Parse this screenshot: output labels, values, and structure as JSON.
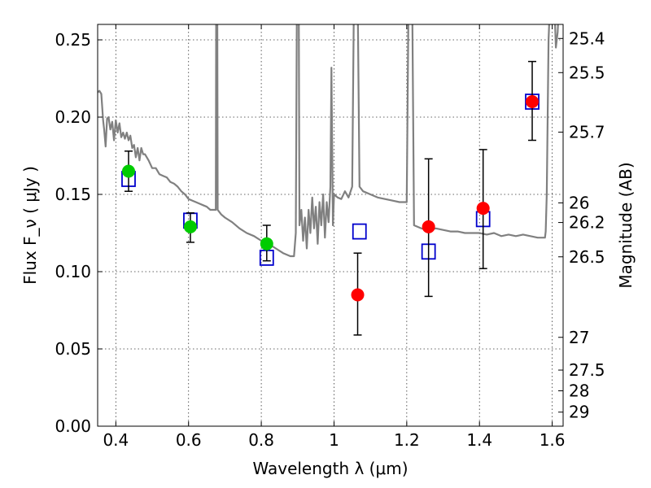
{
  "chart_data": {
    "type": "scatter",
    "title": "",
    "xlabel": "Wavelength  λ (μm)",
    "ylabel": "Flux  F_ν  ( μJy )",
    "ylabel_right": "Magnitude (AB)",
    "xlim": [
      0.35,
      1.63
    ],
    "ylim": [
      0,
      0.26
    ],
    "grid": true,
    "xticks": [
      0.4,
      0.6,
      0.8,
      1.0,
      1.2,
      1.4,
      1.6
    ],
    "xtick_labels": [
      "0.4",
      "0.6",
      "0.8",
      "1",
      "1.2",
      "1.4",
      "1.6"
    ],
    "yticks": [
      0,
      0.05,
      0.1,
      0.15,
      0.2,
      0.25
    ],
    "ytick_labels": [
      "0.00",
      "0.05",
      "0.10",
      "0.15",
      "0.20",
      "0.25"
    ],
    "right_ticks": [
      {
        "flux": 0.2509,
        "label": "25.4"
      },
      {
        "flux": 0.2288,
        "label": "25.5"
      },
      {
        "flux": 0.1903,
        "label": "25.7"
      },
      {
        "flux": 0.1445,
        "label": "26"
      },
      {
        "flux": 0.1318,
        "label": "26.2"
      },
      {
        "flux": 0.1096,
        "label": "26.5"
      },
      {
        "flux": 0.0575,
        "label": "27"
      },
      {
        "flux": 0.0363,
        "label": "27.5"
      },
      {
        "flux": 0.0229,
        "label": "28"
      },
      {
        "flux": 0.0091,
        "label": "29"
      }
    ],
    "colors": {
      "model": "#808080",
      "detected": "#00cc00",
      "upper": "#ff0000",
      "model_flux": "#0000cc",
      "errorbar": "#000000"
    },
    "series": [
      {
        "marker": "line",
        "points": [
          [
            0.35,
            0.216
          ],
          [
            0.355,
            0.217
          ],
          [
            0.36,
            0.215
          ],
          [
            0.365,
            0.198
          ],
          [
            0.368,
            0.192
          ],
          [
            0.372,
            0.181
          ],
          [
            0.376,
            0.199
          ],
          [
            0.38,
            0.2
          ],
          [
            0.385,
            0.192
          ],
          [
            0.39,
            0.197
          ],
          [
            0.395,
            0.185
          ],
          [
            0.4,
            0.198
          ],
          [
            0.405,
            0.19
          ],
          [
            0.41,
            0.196
          ],
          [
            0.415,
            0.187
          ],
          [
            0.42,
            0.19
          ],
          [
            0.425,
            0.186
          ],
          [
            0.43,
            0.19
          ],
          [
            0.435,
            0.185
          ],
          [
            0.44,
            0.188
          ],
          [
            0.445,
            0.18
          ],
          [
            0.45,
            0.182
          ],
          [
            0.455,
            0.174
          ],
          [
            0.46,
            0.18
          ],
          [
            0.465,
            0.172
          ],
          [
            0.47,
            0.18
          ],
          [
            0.475,
            0.176
          ],
          [
            0.48,
            0.176
          ],
          [
            0.49,
            0.172
          ],
          [
            0.5,
            0.167
          ],
          [
            0.51,
            0.167
          ],
          [
            0.52,
            0.163
          ],
          [
            0.53,
            0.162
          ],
          [
            0.54,
            0.161
          ],
          [
            0.55,
            0.158
          ],
          [
            0.56,
            0.157
          ],
          [
            0.57,
            0.155
          ],
          [
            0.58,
            0.152
          ],
          [
            0.59,
            0.15
          ],
          [
            0.6,
            0.147
          ],
          [
            0.61,
            0.146
          ],
          [
            0.62,
            0.145
          ],
          [
            0.63,
            0.144
          ],
          [
            0.64,
            0.143
          ],
          [
            0.65,
            0.142
          ],
          [
            0.66,
            0.14
          ],
          [
            0.67,
            0.14
          ],
          [
            0.675,
            0.14
          ],
          [
            0.676,
            0.28
          ],
          [
            0.679,
            0.28
          ],
          [
            0.68,
            0.14
          ],
          [
            0.69,
            0.137
          ],
          [
            0.7,
            0.135
          ],
          [
            0.72,
            0.132
          ],
          [
            0.74,
            0.128
          ],
          [
            0.76,
            0.125
          ],
          [
            0.78,
            0.123
          ],
          [
            0.8,
            0.12
          ],
          [
            0.82,
            0.118
          ],
          [
            0.84,
            0.115
          ],
          [
            0.86,
            0.112
          ],
          [
            0.88,
            0.11
          ],
          [
            0.89,
            0.11
          ],
          [
            0.895,
            0.125
          ],
          [
            0.898,
            0.28
          ],
          [
            0.903,
            0.28
          ],
          [
            0.905,
            0.13
          ],
          [
            0.91,
            0.14
          ],
          [
            0.915,
            0.12
          ],
          [
            0.92,
            0.135
          ],
          [
            0.925,
            0.115
          ],
          [
            0.93,
            0.14
          ],
          [
            0.935,
            0.125
          ],
          [
            0.94,
            0.148
          ],
          [
            0.945,
            0.128
          ],
          [
            0.95,
            0.142
          ],
          [
            0.955,
            0.118
          ],
          [
            0.96,
            0.145
          ],
          [
            0.965,
            0.13
          ],
          [
            0.97,
            0.15
          ],
          [
            0.975,
            0.122
          ],
          [
            0.98,
            0.145
          ],
          [
            0.985,
            0.132
          ],
          [
            0.99,
            0.155
          ],
          [
            0.993,
            0.232
          ],
          [
            0.997,
            0.13
          ],
          [
            1.0,
            0.15
          ],
          [
            1.01,
            0.148
          ],
          [
            1.02,
            0.147
          ],
          [
            1.03,
            0.152
          ],
          [
            1.04,
            0.148
          ],
          [
            1.05,
            0.155
          ],
          [
            1.055,
            0.28
          ],
          [
            1.065,
            0.28
          ],
          [
            1.07,
            0.155
          ],
          [
            1.08,
            0.152
          ],
          [
            1.1,
            0.15
          ],
          [
            1.12,
            0.148
          ],
          [
            1.14,
            0.147
          ],
          [
            1.16,
            0.146
          ],
          [
            1.18,
            0.145
          ],
          [
            1.2,
            0.145
          ],
          [
            1.205,
            0.28
          ],
          [
            1.215,
            0.28
          ],
          [
            1.22,
            0.13
          ],
          [
            1.24,
            0.128
          ],
          [
            1.26,
            0.127
          ],
          [
            1.28,
            0.128
          ],
          [
            1.3,
            0.127
          ],
          [
            1.32,
            0.126
          ],
          [
            1.34,
            0.126
          ],
          [
            1.36,
            0.125
          ],
          [
            1.38,
            0.125
          ],
          [
            1.4,
            0.125
          ],
          [
            1.42,
            0.124
          ],
          [
            1.44,
            0.125
          ],
          [
            1.46,
            0.123
          ],
          [
            1.48,
            0.124
          ],
          [
            1.5,
            0.123
          ],
          [
            1.52,
            0.124
          ],
          [
            1.54,
            0.123
          ],
          [
            1.56,
            0.122
          ],
          [
            1.58,
            0.122
          ],
          [
            1.582,
            0.126
          ],
          [
            1.585,
            0.15
          ],
          [
            1.59,
            0.25
          ],
          [
            1.595,
            0.28
          ],
          [
            1.605,
            0.28
          ],
          [
            1.61,
            0.245
          ],
          [
            1.615,
            0.255
          ],
          [
            1.62,
            0.28
          ]
        ]
      },
      {
        "marker": "open-square",
        "points": [
          [
            0.435,
            0.16
          ],
          [
            0.605,
            0.133
          ],
          [
            0.815,
            0.109
          ],
          [
            1.07,
            0.126
          ],
          [
            1.26,
            0.113
          ],
          [
            1.41,
            0.134
          ],
          [
            1.545,
            0.21
          ]
        ]
      },
      {
        "marker": "filled-circle",
        "points": [
          {
            "x": 0.435,
            "y": 0.165,
            "err_lo": 0.152,
            "err_hi": 0.178
          },
          {
            "x": 0.605,
            "y": 0.129,
            "err_lo": 0.119,
            "err_hi": 0.138
          },
          {
            "x": 0.815,
            "y": 0.118,
            "err_lo": 0.107,
            "err_hi": 0.13
          }
        ]
      },
      {
        "marker": "filled-circle",
        "points": [
          {
            "x": 1.065,
            "y": 0.085,
            "err_lo": 0.059,
            "err_hi": 0.112
          },
          {
            "x": 1.26,
            "y": 0.129,
            "err_lo": 0.084,
            "err_hi": 0.173
          },
          {
            "x": 1.41,
            "y": 0.141,
            "err_lo": 0.102,
            "err_hi": 0.179
          },
          {
            "x": 1.545,
            "y": 0.21,
            "err_lo": 0.185,
            "err_hi": 0.236
          }
        ]
      }
    ]
  }
}
